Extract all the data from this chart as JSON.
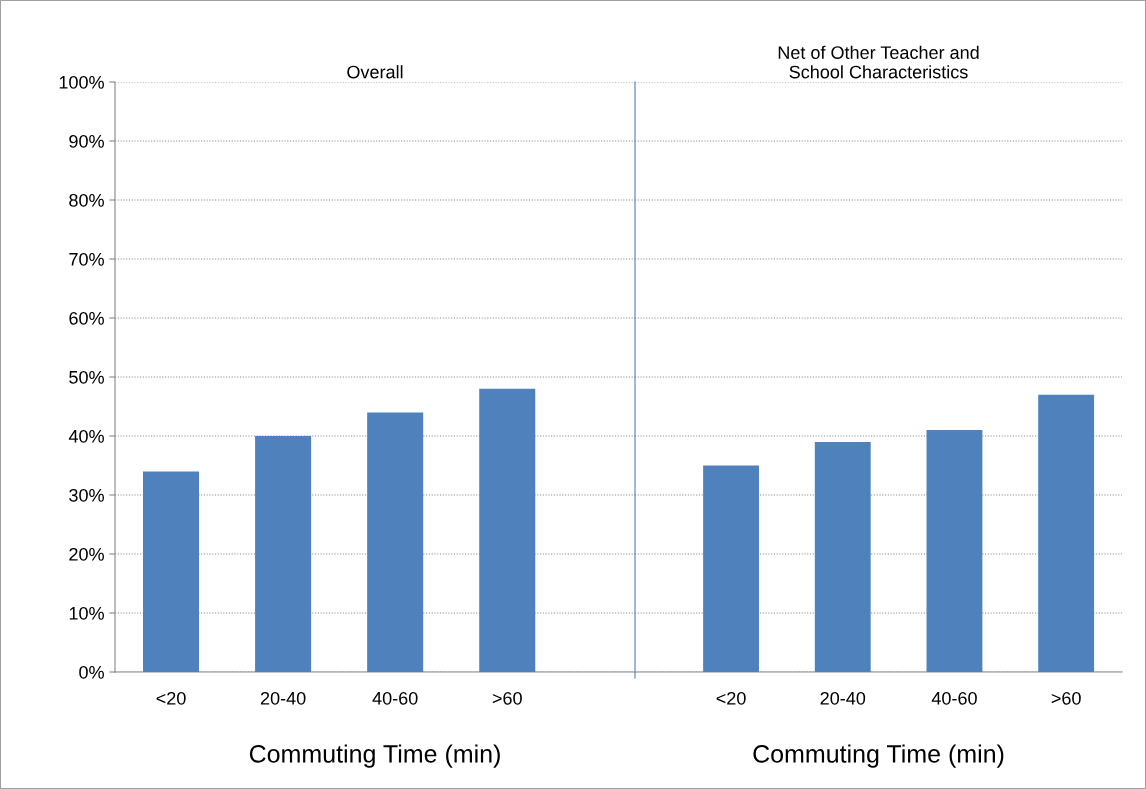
{
  "chart_data": [
    {
      "type": "bar",
      "title": "Overall",
      "xlabel": "Commuting Time (min)",
      "categories": [
        "<20",
        "20-40",
        "40-60",
        ">60"
      ],
      "values": [
        34,
        40,
        44,
        48
      ],
      "color": "#4f81bd",
      "ylim": [
        0,
        100
      ],
      "yticks": [
        {
          "value": 0,
          "label": "0%"
        },
        {
          "value": 10,
          "label": "10%"
        },
        {
          "value": 20,
          "label": "20%"
        },
        {
          "value": 30,
          "label": "30%"
        },
        {
          "value": 40,
          "label": "40%"
        },
        {
          "value": 50,
          "label": "50%"
        },
        {
          "value": 60,
          "label": "60%"
        },
        {
          "value": 70,
          "label": "70%"
        },
        {
          "value": 80,
          "label": "80%"
        },
        {
          "value": 90,
          "label": "90%"
        },
        {
          "value": 100,
          "label": "100%"
        }
      ],
      "grid": "y"
    },
    {
      "type": "bar",
      "title": "Net of Other Teacher and\nSchool Characteristics",
      "xlabel": "Commuting Time (min)",
      "categories": [
        "<20",
        "20-40",
        "40-60",
        ">60"
      ],
      "values": [
        35,
        39,
        41,
        47
      ],
      "color": "#4f81bd",
      "ylim": [
        0,
        100
      ],
      "yticks": [
        {
          "value": 0,
          "label": null
        },
        {
          "value": 10,
          "label": null
        },
        {
          "value": 20,
          "label": null
        },
        {
          "value": 30,
          "label": null
        },
        {
          "value": 40,
          "label": null
        },
        {
          "value": 50,
          "label": null
        },
        {
          "value": 60,
          "label": null
        },
        {
          "value": 70,
          "label": null
        },
        {
          "value": 80,
          "label": null
        },
        {
          "value": 90,
          "label": null
        },
        {
          "value": 100,
          "label": null
        }
      ],
      "grid": "y",
      "tick_labels": "x"
    }
  ]
}
